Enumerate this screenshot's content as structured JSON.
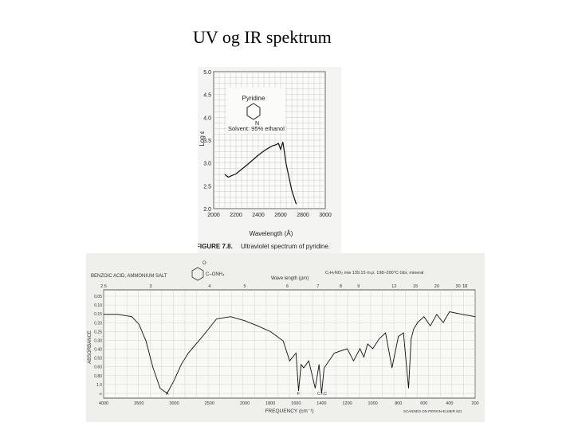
{
  "slide": {
    "title": "UV og IR spektrum"
  },
  "chart_data": [
    {
      "type": "line",
      "title": "",
      "caption_label": "FIGURE 7.8.",
      "caption_text": "Ultraviolet spectrum of pyridine.",
      "compound_label": "Pyridine",
      "solvent_note": "Solvent: 95% ethanol",
      "structure_atom": "N",
      "xlabel": "Wavelength (Å)",
      "ylabel": "Log ε",
      "xlim": [
        2000,
        3000
      ],
      "ylim": [
        2.0,
        5.0
      ],
      "x_ticks": [
        "2000",
        "2200",
        "2400",
        "2600",
        "2800",
        "3000"
      ],
      "y_ticks": [
        "2.0",
        "2.5",
        "3.0",
        "3.5",
        "4.0",
        "4.5",
        "5.0"
      ],
      "grid": true,
      "x": [
        2100,
        2130,
        2200,
        2300,
        2400,
        2460,
        2500,
        2530,
        2560,
        2580,
        2600,
        2620,
        2650,
        2700,
        2740
      ],
      "y": [
        2.75,
        2.69,
        2.76,
        2.96,
        3.17,
        3.28,
        3.34,
        3.38,
        3.4,
        3.43,
        3.3,
        3.46,
        2.97,
        2.4,
        2.1
      ]
    },
    {
      "type": "line",
      "title": "",
      "sample_label": "BENZOIC ACID, AMMONIUM SALT",
      "structure_formula": "C–ONH₄",
      "structure_atom": "O",
      "header_info": "C₇H₇NO₂  mw 139.15  m.p. 198–200°C  Gbr, mineral",
      "top_axis_label": "Wave length (μm)",
      "top_ticks": [
        "2.5",
        "3",
        "4",
        "5",
        "6",
        "7",
        "8",
        "9",
        "10",
        "12",
        "15",
        "20",
        "30",
        "10"
      ],
      "xlabel": "FREQUENCY (cm⁻¹)",
      "ylabel": "ABSORBANCE",
      "x_ticks": [
        "4000",
        "3500",
        "3000",
        "2500",
        "2000",
        "1800",
        "1600",
        "1400",
        "1200",
        "1000",
        "800",
        "600",
        "400",
        "200"
      ],
      "y_ticks": [
        "0.05",
        "0.10",
        "0.15",
        "0.20",
        "0.25",
        "0.30",
        "0.40",
        "0.50",
        "0.60",
        "0.80",
        "1.0",
        "∞"
      ],
      "grid": true,
      "band_labels": [
        "A",
        "F",
        "C",
        "I.C"
      ],
      "footer_note": "SCANNED ON PERKIN-ELMER 621",
      "x": [
        4000,
        3800,
        3600,
        3500,
        3400,
        3300,
        3200,
        3100,
        3000,
        2900,
        2800,
        2600,
        2400,
        2200,
        2000,
        1900,
        1800,
        1700,
        1650,
        1600,
        1580,
        1560,
        1540,
        1500,
        1450,
        1420,
        1400,
        1380,
        1300,
        1200,
        1150,
        1100,
        1070,
        1040,
        1000,
        950,
        900,
        850,
        800,
        760,
        720,
        700,
        680,
        650,
        600,
        550,
        500,
        450,
        400,
        300,
        200
      ],
      "y": [
        0.04,
        0.04,
        0.05,
        0.09,
        0.22,
        0.55,
        0.9,
        1.0,
        0.75,
        0.5,
        0.35,
        0.18,
        0.06,
        0.05,
        0.07,
        0.1,
        0.14,
        0.22,
        0.45,
        0.35,
        0.95,
        0.5,
        0.55,
        0.45,
        0.9,
        0.5,
        1.0,
        0.55,
        0.35,
        0.3,
        0.45,
        0.3,
        0.4,
        0.25,
        0.3,
        0.2,
        0.15,
        0.55,
        0.18,
        0.15,
        0.9,
        0.2,
        0.12,
        0.08,
        0.05,
        0.1,
        0.04,
        0.08,
        0.03,
        0.04,
        0.05
      ]
    }
  ]
}
